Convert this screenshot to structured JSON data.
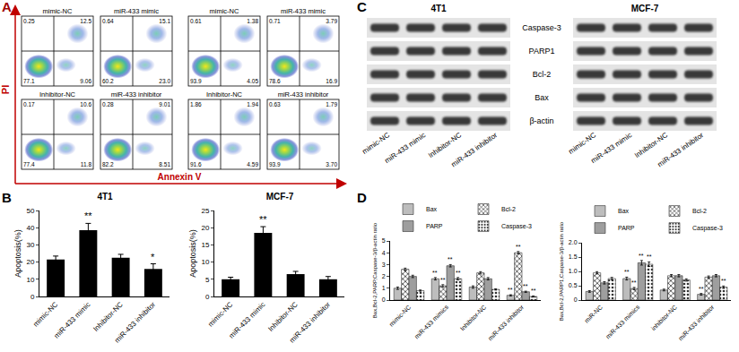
{
  "panel_labels": [
    "A",
    "B",
    "C",
    "D"
  ],
  "flow_cytometry": {
    "x_label": "Annexin V",
    "y_label": "PI",
    "groups": [
      {
        "plots": [
          {
            "title": "mimic-NC",
            "quadrants": {
              "UL": "0.25",
              "UR": "12.5",
              "LL": "77.1",
              "LR": "9.06"
            }
          },
          {
            "title": "miR-433 mimic",
            "quadrants": {
              "UL": "0.64",
              "UR": "15.1",
              "LL": "60.2",
              "LR": "23.0"
            }
          },
          {
            "title": "Inhibitor-NC",
            "quadrants": {
              "UL": "0.17",
              "UR": "10.6",
              "LL": "77.4",
              "LR": "11.8"
            }
          },
          {
            "title": "miR-433 inhibitor",
            "quadrants": {
              "UL": "0.28",
              "UR": "9.01",
              "LL": "82.2",
              "LR": "8.51"
            }
          }
        ]
      },
      {
        "plots": [
          {
            "title": "mimic-NC",
            "quadrants": {
              "UL": "0.61",
              "UR": "1.38",
              "LL": "93.9",
              "LR": "4.05"
            }
          },
          {
            "title": "miR-433 mimic",
            "quadrants": {
              "UL": "0.71",
              "UR": "3.79",
              "LL": "78.6",
              "LR": "16.9"
            }
          },
          {
            "title": "Inhibitor-NC",
            "quadrants": {
              "UL": "1.86",
              "UR": "1.94",
              "LL": "91.6",
              "LR": "4.59"
            }
          },
          {
            "title": "miR-433 inhibitor",
            "quadrants": {
              "UL": "0.63",
              "UR": "1.79",
              "LL": "93.9",
              "LR": "3.70"
            }
          }
        ]
      }
    ]
  },
  "western_blot": {
    "proteins": [
      "Caspase-3",
      "PARP1",
      "Bcl-2",
      "Bax",
      "β-actin"
    ],
    "blots": [
      {
        "title": "4T1",
        "lanes": [
          "mimic-NC",
          "miR-433 mimic",
          "Inhibitor-NC",
          "miR-433 inhibitor"
        ]
      },
      {
        "title": "MCF-7",
        "lanes": [
          "mimic-NC",
          "miR-433 mimic",
          "Inhibitor-NC",
          "miR-433 inhibitor"
        ]
      }
    ]
  },
  "chart_data": [
    {
      "type": "bar",
      "title": "4T1",
      "categories": [
        "mimic-NC",
        "miR-433 mimic",
        "Inhibitor-NC",
        "miR-433 inhibitor"
      ],
      "values": [
        21.5,
        38.5,
        22.5,
        16
      ],
      "errors": [
        2,
        4,
        2,
        3
      ],
      "color": "#000000",
      "ylabel": "Apoptosis(%)",
      "ylim": [
        0,
        50
      ],
      "yticks": [
        0,
        10,
        20,
        30,
        40,
        50
      ],
      "grid": false,
      "annotations": [
        {
          "category": "miR-433 mimic",
          "text": "**"
        },
        {
          "category": "miR-433 inhibitor",
          "text": "*"
        }
      ]
    },
    {
      "type": "bar",
      "title": "MCF-7",
      "categories": [
        "mimic-NC",
        "miR-433 mimic",
        "Inhibitor-NC",
        "miR-433 inhibitor"
      ],
      "values": [
        5,
        18.5,
        6.5,
        5
      ],
      "errors": [
        0.6,
        1.8,
        0.8,
        0.8
      ],
      "color": "#000000",
      "ylabel": "Apoptosis(%)",
      "ylim": [
        0,
        25
      ],
      "yticks": [
        0,
        5,
        10,
        15,
        20,
        25
      ],
      "grid": false,
      "annotations": [
        {
          "category": "miR-433 mimic",
          "text": "**"
        }
      ]
    },
    {
      "type": "bar",
      "categories": [
        "mimic-NC",
        "miR-433 mimics",
        "Inhibitor-NC",
        "miR-433 inhibitor"
      ],
      "ylabel": "Bax,Bcl-2,PARP,Caspase-3/β-actin ratio",
      "ylim": [
        0,
        5
      ],
      "yticks": [
        0,
        1,
        2,
        3,
        4,
        5
      ],
      "grid": false,
      "legend": "top",
      "series": [
        {
          "name": "Bax",
          "color": "#bdbdbd",
          "values": [
            1.0,
            1.8,
            1.1,
            0.4
          ],
          "errors": [
            0.1,
            0.1,
            0.1,
            0.05
          ]
        },
        {
          "name": "Bcl-2",
          "color": "#e0e0e0",
          "values": [
            2.6,
            1.2,
            2.3,
            4.0
          ],
          "errors": [
            0.1,
            0.1,
            0.1,
            0.1
          ]
        },
        {
          "name": "PARP",
          "color": "#9e9e9e",
          "values": [
            2.0,
            2.9,
            1.8,
            0.7
          ],
          "errors": [
            0.1,
            0.1,
            0.1,
            0.05
          ]
        },
        {
          "name": "Caspase-3",
          "color": "#ededed",
          "values": [
            0.8,
            1.8,
            0.9,
            0.3
          ],
          "errors": [
            0.05,
            0.1,
            0.05,
            0.05
          ]
        }
      ],
      "annotations": [
        {
          "category": "miR-433 mimics",
          "series": "Bax",
          "text": "**"
        },
        {
          "category": "miR-433 mimics",
          "series": "Bcl-2",
          "text": "**"
        },
        {
          "category": "miR-433 mimics",
          "series": "PARP",
          "text": "**"
        },
        {
          "category": "miR-433 mimics",
          "series": "Caspase-3",
          "text": "**"
        },
        {
          "category": "miR-433 inhibitor",
          "series": "Bax",
          "text": "**"
        },
        {
          "category": "miR-433 inhibitor",
          "series": "Bcl-2",
          "text": "**"
        },
        {
          "category": "miR-433 inhibitor",
          "series": "PARP",
          "text": "**"
        },
        {
          "category": "miR-433 inhibitor",
          "series": "Caspase-3",
          "text": "**"
        }
      ]
    },
    {
      "type": "bar",
      "categories": [
        "miR-NC",
        "miR-433 mimics",
        "inhibitor-NC",
        "miR-433 inhibitor"
      ],
      "ylabel": "Bax,Bcl-2,PARP1,Caspase-3/β-actin ratio",
      "ylim": [
        0,
        2
      ],
      "yticks": [
        0,
        0.5,
        {
          "value": 1,
          "label": "1.0"
        },
        1.5,
        {
          "value": 2,
          "label": "2.0"
        }
      ],
      "grid": false,
      "legend": "top",
      "series": [
        {
          "name": "Bax",
          "color": "#bdbdbd",
          "values": [
            0.3,
            0.75,
            0.35,
            0.2
          ],
          "errors": [
            0.03,
            0.05,
            0.03,
            0.03
          ]
        },
        {
          "name": "Bcl-2",
          "color": "#e0e0e0",
          "values": [
            0.95,
            0.4,
            0.85,
            0.8
          ],
          "errors": [
            0.04,
            0.04,
            0.04,
            0.04
          ]
        },
        {
          "name": "PARP",
          "color": "#9e9e9e",
          "values": [
            0.6,
            1.3,
            0.85,
            0.85
          ],
          "errors": [
            0.04,
            0.08,
            0.04,
            0.04
          ]
        },
        {
          "name": "Caspase-3",
          "color": "#ededed",
          "values": [
            0.75,
            1.25,
            0.7,
            0.45
          ],
          "errors": [
            0.04,
            0.08,
            0.04,
            0.04
          ]
        }
      ],
      "annotations": [
        {
          "category": "miR-433 mimics",
          "series": "Bax",
          "text": "**"
        },
        {
          "category": "miR-433 mimics",
          "series": "Bcl-2",
          "text": "**"
        },
        {
          "category": "miR-433 mimics",
          "series": "PARP",
          "text": "**"
        },
        {
          "category": "miR-433 mimics",
          "series": "Caspase-3",
          "text": "**"
        },
        {
          "category": "miR-433 inhibitor",
          "series": "Bax",
          "text": "**"
        },
        {
          "category": "miR-433 inhibitor",
          "series": "Caspase-3",
          "text": "**"
        }
      ]
    }
  ]
}
